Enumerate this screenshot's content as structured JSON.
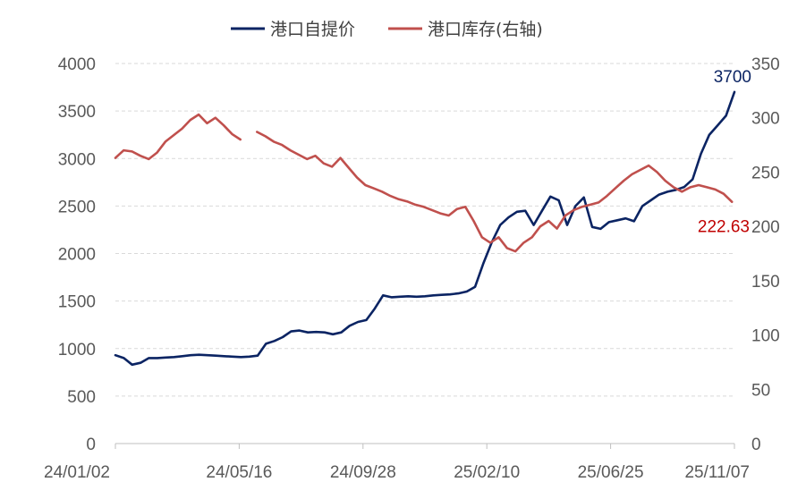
{
  "chart_data": {
    "type": "line",
    "title": "",
    "legend_position": "top",
    "grid": true,
    "x_ticks": [
      "24/01/02",
      "24/05/16",
      "24/09/28",
      "25/02/10",
      "25/06/25",
      "25/11/07"
    ],
    "y_left": {
      "label": "",
      "ylim": [
        0,
        4000
      ],
      "ticks": [
        "0",
        "500",
        "1000",
        "1500",
        "2000",
        "2500",
        "3000",
        "3500",
        "4000"
      ]
    },
    "y_right": {
      "label": "",
      "ylim": [
        0,
        350
      ],
      "ticks": [
        "0",
        "50",
        "100",
        "150",
        "200",
        "250",
        "300",
        "350"
      ]
    },
    "series": [
      {
        "name": "港口自提价",
        "axis": "left",
        "color": "#0b2463",
        "x_range": [
          0,
          1
        ],
        "values": [
          930,
          900,
          830,
          850,
          900,
          900,
          905,
          910,
          920,
          930,
          935,
          930,
          925,
          920,
          915,
          910,
          915,
          925,
          1050,
          1080,
          1120,
          1180,
          1190,
          1170,
          1175,
          1170,
          1150,
          1170,
          1240,
          1280,
          1300,
          1420,
          1560,
          1540,
          1545,
          1550,
          1545,
          1550,
          1560,
          1565,
          1570,
          1580,
          1600,
          1650,
          1900,
          2120,
          2300,
          2380,
          2440,
          2450,
          2300,
          2450,
          2600,
          2560,
          2300,
          2500,
          2590,
          2280,
          2260,
          2330,
          2350,
          2370,
          2340,
          2500,
          2560,
          2620,
          2650,
          2670,
          2700,
          2780,
          3050,
          3250,
          3350,
          3450,
          3700
        ]
      },
      {
        "name": "港口库存(右轴)",
        "axis": "right",
        "color": "#c0504d",
        "x_range": [
          0,
          0.996
        ],
        "values": [
          263,
          270,
          269,
          265,
          262,
          268,
          278,
          284,
          290,
          298,
          303,
          295,
          300,
          293,
          285,
          280,
          null,
          287,
          283,
          278,
          275,
          270,
          266,
          262,
          265,
          258,
          255,
          263,
          254,
          245,
          238,
          235,
          232,
          228,
          225,
          223,
          220,
          218,
          215,
          212,
          210,
          216,
          218,
          205,
          190,
          185,
          190,
          180,
          177,
          185,
          190,
          200,
          205,
          198,
          210,
          215,
          218,
          220,
          222,
          228,
          235,
          242,
          248,
          252,
          256,
          250,
          242,
          236,
          232,
          236,
          238,
          236,
          234,
          230,
          222.63
        ]
      }
    ],
    "annotations": [
      {
        "series": "港口自提价",
        "text": "3700",
        "color": "#0b2463"
      },
      {
        "series": "港口库存(右轴)",
        "text": "222.63",
        "color": "#c00000"
      }
    ]
  }
}
